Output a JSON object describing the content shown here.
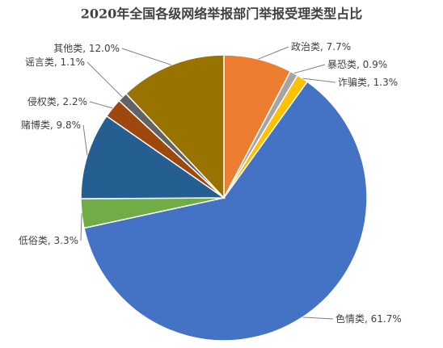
{
  "chart_data": {
    "type": "pie",
    "title": "2020年全国各级网络举报部门举报受理类型占比",
    "categories": [
      "政治类",
      "暴恐类",
      "诈骗类",
      "色情类",
      "低俗类",
      "赌博类",
      "侵权类",
      "谣言类",
      "其他类"
    ],
    "values": [
      7.7,
      0.9,
      1.3,
      61.7,
      3.3,
      9.8,
      2.2,
      1.1,
      12.0
    ],
    "value_labels": [
      "7.7%",
      "0.9%",
      "1.3%",
      "61.7%",
      "3.3%",
      "9.8%",
      "2.2%",
      "1.1%",
      "12.0%"
    ],
    "label_separator": ", ",
    "colors": [
      "#ED7D31",
      "#A5A5A5",
      "#FFC000",
      "#4472C4",
      "#70AD47",
      "#255E91",
      "#9E480E",
      "#636363",
      "#997300"
    ]
  }
}
